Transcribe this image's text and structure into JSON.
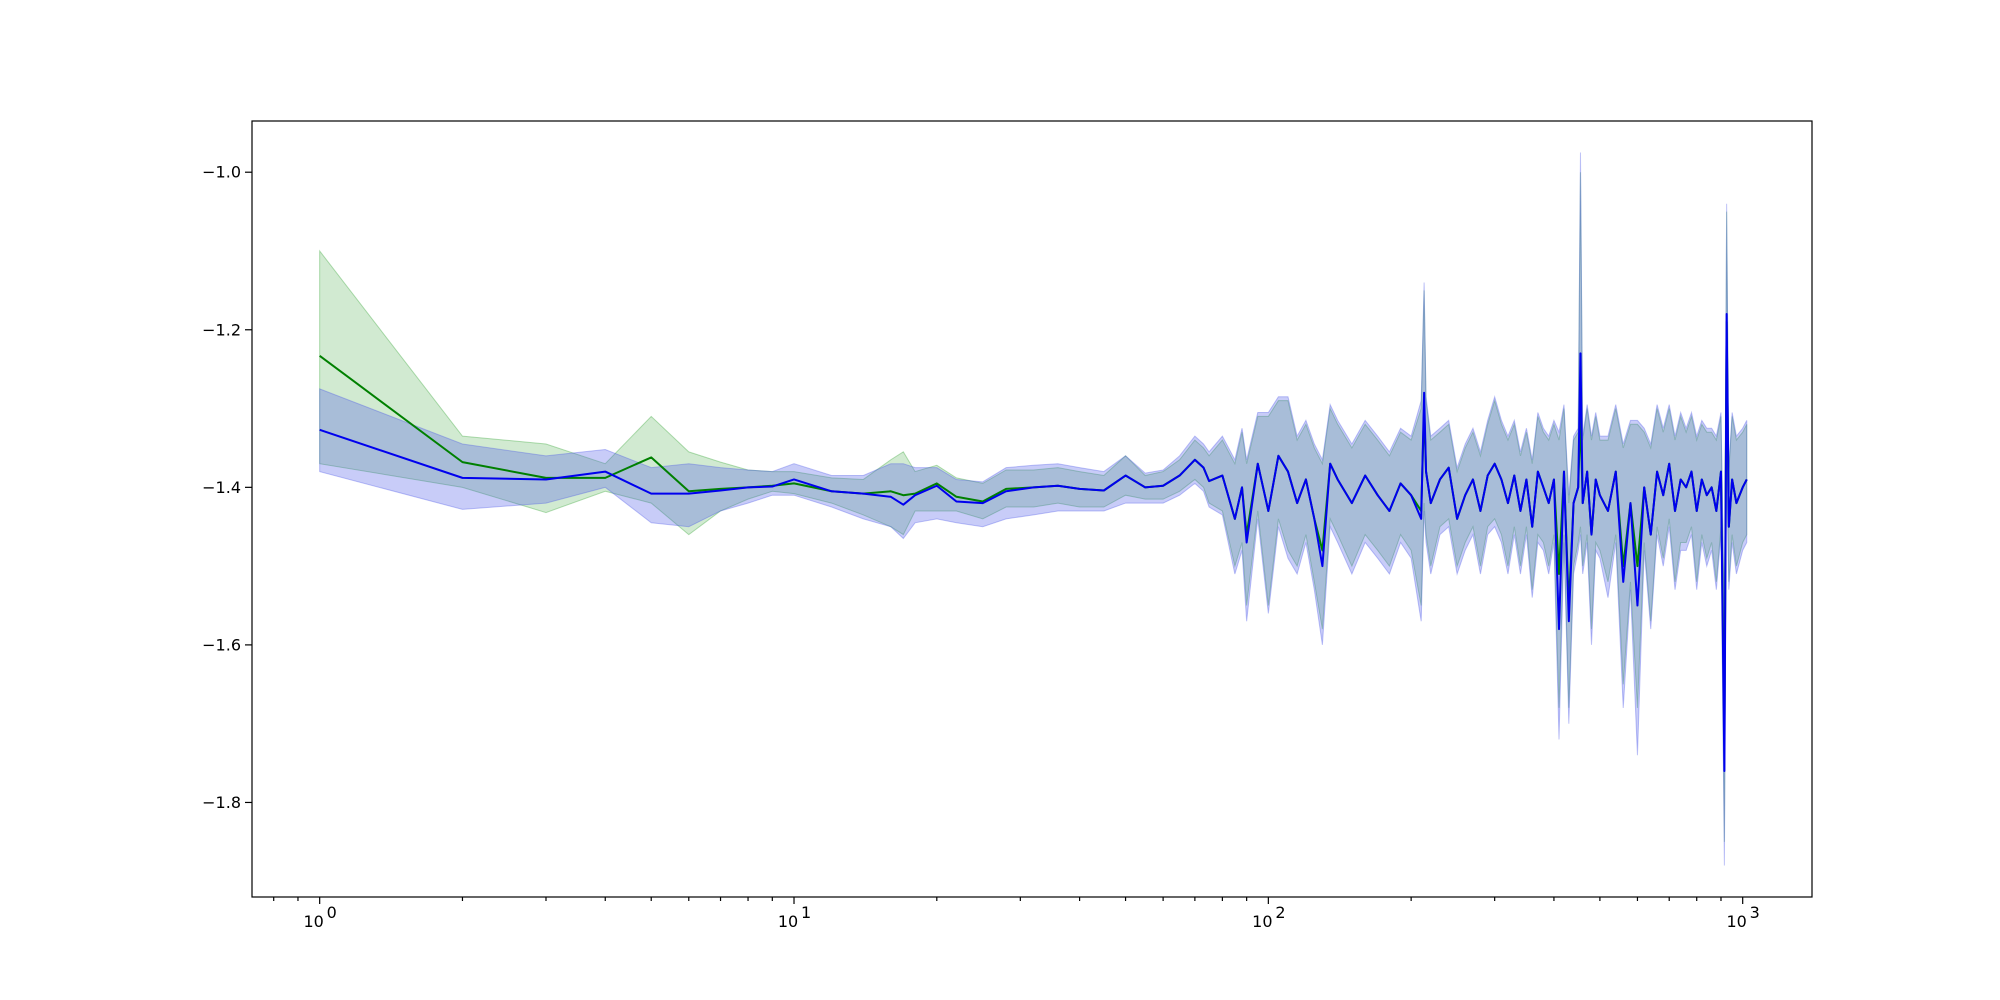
{
  "chart_data": {
    "type": "line",
    "title": "",
    "xlabel": "",
    "ylabel": "",
    "xscale": "log",
    "xlim": [
      0.72,
      1400
    ],
    "ylim": [
      -1.92,
      -0.935
    ],
    "grid": false,
    "legend": "none",
    "x_ticks": [
      {
        "value": 1,
        "base": "10",
        "exp": "0"
      },
      {
        "value": 10,
        "base": "10",
        "exp": "1"
      },
      {
        "value": 100,
        "base": "10",
        "exp": "2"
      },
      {
        "value": 1000,
        "base": "10",
        "exp": "3"
      }
    ],
    "y_ticks": [
      {
        "value": -1.0,
        "label": "−1.0"
      },
      {
        "value": -1.2,
        "label": "−1.2"
      },
      {
        "value": -1.4,
        "label": "−1.4"
      },
      {
        "value": -1.6,
        "label": "−1.6"
      },
      {
        "value": -1.8,
        "label": "−1.8"
      }
    ],
    "series": [
      {
        "color": "#008000",
        "band_color": "#2ca02c",
        "x": [
          1,
          2,
          3,
          4,
          5,
          6,
          7,
          8,
          9,
          10,
          12,
          14,
          16,
          17,
          18,
          20,
          22,
          25,
          28,
          32,
          36,
          40,
          45,
          50,
          55,
          60,
          65,
          70,
          73,
          75,
          80,
          85,
          88,
          90,
          95,
          100,
          105,
          110,
          115,
          120,
          125,
          130,
          135,
          140,
          150,
          160,
          170,
          180,
          190,
          200,
          210,
          213,
          215,
          220,
          230,
          240,
          250,
          260,
          270,
          280,
          290,
          300,
          310,
          320,
          330,
          340,
          350,
          360,
          370,
          380,
          390,
          400,
          410,
          420,
          430,
          440,
          450,
          455,
          460,
          470,
          480,
          490,
          500,
          520,
          540,
          560,
          580,
          600,
          620,
          640,
          660,
          680,
          700,
          720,
          740,
          760,
          780,
          800,
          820,
          840,
          860,
          880,
          900,
          915,
          925,
          935,
          950,
          970,
          1000,
          1020
        ],
        "y": [
          -1.233,
          -1.368,
          -1.388,
          -1.388,
          -1.362,
          -1.405,
          -1.402,
          -1.4,
          -1.398,
          -1.395,
          -1.405,
          -1.408,
          -1.405,
          -1.41,
          -1.408,
          -1.395,
          -1.412,
          -1.418,
          -1.402,
          -1.4,
          -1.398,
          -1.402,
          -1.404,
          -1.385,
          -1.4,
          -1.398,
          -1.385,
          -1.365,
          -1.375,
          -1.392,
          -1.385,
          -1.44,
          -1.4,
          -1.46,
          -1.37,
          -1.43,
          -1.36,
          -1.38,
          -1.42,
          -1.39,
          -1.44,
          -1.48,
          -1.37,
          -1.39,
          -1.42,
          -1.385,
          -1.41,
          -1.43,
          -1.395,
          -1.41,
          -1.43,
          -1.3,
          -1.38,
          -1.42,
          -1.39,
          -1.375,
          -1.44,
          -1.41,
          -1.39,
          -1.43,
          -1.385,
          -1.37,
          -1.39,
          -1.42,
          -1.385,
          -1.43,
          -1.39,
          -1.45,
          -1.38,
          -1.4,
          -1.42,
          -1.39,
          -1.51,
          -1.38,
          -1.55,
          -1.42,
          -1.4,
          -1.31,
          -1.42,
          -1.38,
          -1.46,
          -1.39,
          -1.41,
          -1.43,
          -1.38,
          -1.5,
          -1.42,
          -1.5,
          -1.4,
          -1.46,
          -1.38,
          -1.41,
          -1.37,
          -1.43,
          -1.39,
          -1.4,
          -1.38,
          -1.43,
          -1.39,
          -1.41,
          -1.4,
          -1.43,
          -1.38,
          -1.72,
          -1.19,
          -1.45,
          -1.39,
          -1.42,
          -1.4,
          -1.39
        ],
        "band_lower": [
          -1.37,
          -1.4,
          -1.432,
          -1.405,
          -1.42,
          -1.46,
          -1.43,
          -1.415,
          -1.405,
          -1.408,
          -1.42,
          -1.435,
          -1.45,
          -1.46,
          -1.43,
          -1.43,
          -1.43,
          -1.44,
          -1.425,
          -1.425,
          -1.42,
          -1.425,
          -1.425,
          -1.41,
          -1.415,
          -1.415,
          -1.405,
          -1.39,
          -1.4,
          -1.42,
          -1.43,
          -1.5,
          -1.47,
          -1.55,
          -1.43,
          -1.55,
          -1.44,
          -1.48,
          -1.5,
          -1.46,
          -1.52,
          -1.58,
          -1.44,
          -1.46,
          -1.5,
          -1.46,
          -1.48,
          -1.5,
          -1.46,
          -1.48,
          -1.55,
          -1.42,
          -1.46,
          -1.5,
          -1.45,
          -1.44,
          -1.5,
          -1.47,
          -1.45,
          -1.5,
          -1.45,
          -1.44,
          -1.46,
          -1.5,
          -1.45,
          -1.5,
          -1.45,
          -1.53,
          -1.46,
          -1.47,
          -1.5,
          -1.46,
          -1.68,
          -1.46,
          -1.68,
          -1.5,
          -1.47,
          -1.45,
          -1.5,
          -1.46,
          -1.58,
          -1.47,
          -1.48,
          -1.52,
          -1.46,
          -1.65,
          -1.52,
          -1.68,
          -1.47,
          -1.57,
          -1.45,
          -1.49,
          -1.44,
          -1.52,
          -1.47,
          -1.47,
          -1.45,
          -1.52,
          -1.46,
          -1.49,
          -1.47,
          -1.52,
          -1.45,
          -1.85,
          -1.35,
          -1.52,
          -1.46,
          -1.5,
          -1.47,
          -1.46
        ],
        "band_upper": [
          -1.1,
          -1.335,
          -1.345,
          -1.37,
          -1.31,
          -1.355,
          -1.368,
          -1.378,
          -1.38,
          -1.38,
          -1.388,
          -1.39,
          -1.365,
          -1.355,
          -1.38,
          -1.372,
          -1.388,
          -1.395,
          -1.378,
          -1.378,
          -1.375,
          -1.38,
          -1.385,
          -1.36,
          -1.385,
          -1.38,
          -1.365,
          -1.34,
          -1.35,
          -1.36,
          -1.34,
          -1.37,
          -1.33,
          -1.37,
          -1.31,
          -1.31,
          -1.29,
          -1.29,
          -1.34,
          -1.32,
          -1.35,
          -1.37,
          -1.3,
          -1.32,
          -1.35,
          -1.32,
          -1.34,
          -1.36,
          -1.33,
          -1.34,
          -1.3,
          -1.15,
          -1.29,
          -1.34,
          -1.33,
          -1.32,
          -1.38,
          -1.35,
          -1.33,
          -1.36,
          -1.32,
          -1.29,
          -1.32,
          -1.34,
          -1.32,
          -1.36,
          -1.33,
          -1.37,
          -1.31,
          -1.33,
          -1.34,
          -1.32,
          -1.34,
          -1.3,
          -1.42,
          -1.34,
          -1.33,
          -1.0,
          -1.34,
          -1.3,
          -1.34,
          -1.31,
          -1.34,
          -1.34,
          -1.3,
          -1.35,
          -1.32,
          -1.32,
          -1.33,
          -1.35,
          -1.3,
          -1.33,
          -1.3,
          -1.34,
          -1.31,
          -1.33,
          -1.31,
          -1.34,
          -1.32,
          -1.33,
          -1.33,
          -1.34,
          -1.31,
          -1.58,
          -1.05,
          -1.38,
          -1.31,
          -1.34,
          -1.33,
          -1.32
        ]
      },
      {
        "color": "#0000ee",
        "band_color": "#4a56e8",
        "x": [
          1,
          2,
          3,
          4,
          5,
          6,
          7,
          8,
          9,
          10,
          12,
          14,
          16,
          17,
          18,
          20,
          22,
          25,
          28,
          32,
          36,
          40,
          45,
          50,
          55,
          60,
          65,
          70,
          73,
          75,
          80,
          85,
          88,
          90,
          95,
          100,
          105,
          110,
          115,
          120,
          125,
          130,
          135,
          140,
          150,
          160,
          170,
          180,
          190,
          200,
          210,
          213,
          215,
          220,
          230,
          240,
          250,
          260,
          270,
          280,
          290,
          300,
          310,
          320,
          330,
          340,
          350,
          360,
          370,
          380,
          390,
          400,
          410,
          420,
          430,
          440,
          450,
          455,
          460,
          470,
          480,
          490,
          500,
          520,
          540,
          560,
          580,
          600,
          620,
          640,
          660,
          680,
          700,
          720,
          740,
          760,
          780,
          800,
          820,
          840,
          860,
          880,
          900,
          915,
          925,
          935,
          950,
          970,
          1000,
          1020
        ],
        "y": [
          -1.327,
          -1.388,
          -1.39,
          -1.38,
          -1.408,
          -1.408,
          -1.404,
          -1.4,
          -1.399,
          -1.39,
          -1.405,
          -1.408,
          -1.412,
          -1.422,
          -1.41,
          -1.398,
          -1.418,
          -1.42,
          -1.405,
          -1.4,
          -1.398,
          -1.402,
          -1.404,
          -1.385,
          -1.4,
          -1.398,
          -1.385,
          -1.365,
          -1.375,
          -1.392,
          -1.385,
          -1.44,
          -1.4,
          -1.47,
          -1.37,
          -1.43,
          -1.36,
          -1.38,
          -1.42,
          -1.39,
          -1.44,
          -1.5,
          -1.37,
          -1.39,
          -1.42,
          -1.385,
          -1.41,
          -1.43,
          -1.395,
          -1.41,
          -1.44,
          -1.28,
          -1.38,
          -1.42,
          -1.39,
          -1.375,
          -1.44,
          -1.41,
          -1.39,
          -1.43,
          -1.385,
          -1.37,
          -1.39,
          -1.42,
          -1.385,
          -1.43,
          -1.39,
          -1.45,
          -1.38,
          -1.4,
          -1.42,
          -1.39,
          -1.58,
          -1.38,
          -1.57,
          -1.42,
          -1.4,
          -1.23,
          -1.42,
          -1.38,
          -1.46,
          -1.39,
          -1.41,
          -1.43,
          -1.38,
          -1.52,
          -1.42,
          -1.55,
          -1.4,
          -1.46,
          -1.38,
          -1.41,
          -1.37,
          -1.43,
          -1.39,
          -1.4,
          -1.38,
          -1.43,
          -1.39,
          -1.41,
          -1.4,
          -1.43,
          -1.38,
          -1.76,
          -1.18,
          -1.45,
          -1.39,
          -1.42,
          -1.4,
          -1.39
        ],
        "band_lower": [
          -1.38,
          -1.428,
          -1.42,
          -1.4,
          -1.445,
          -1.45,
          -1.43,
          -1.42,
          -1.41,
          -1.41,
          -1.425,
          -1.44,
          -1.45,
          -1.465,
          -1.445,
          -1.44,
          -1.445,
          -1.45,
          -1.44,
          -1.435,
          -1.43,
          -1.43,
          -1.43,
          -1.42,
          -1.42,
          -1.42,
          -1.41,
          -1.395,
          -1.405,
          -1.425,
          -1.435,
          -1.51,
          -1.48,
          -1.57,
          -1.44,
          -1.56,
          -1.45,
          -1.49,
          -1.51,
          -1.47,
          -1.53,
          -1.6,
          -1.45,
          -1.47,
          -1.51,
          -1.47,
          -1.49,
          -1.51,
          -1.47,
          -1.49,
          -1.57,
          -1.43,
          -1.47,
          -1.51,
          -1.46,
          -1.45,
          -1.51,
          -1.48,
          -1.46,
          -1.51,
          -1.46,
          -1.45,
          -1.47,
          -1.51,
          -1.46,
          -1.51,
          -1.46,
          -1.54,
          -1.47,
          -1.48,
          -1.51,
          -1.47,
          -1.72,
          -1.47,
          -1.7,
          -1.51,
          -1.48,
          -1.46,
          -1.51,
          -1.47,
          -1.6,
          -1.48,
          -1.49,
          -1.54,
          -1.47,
          -1.68,
          -1.53,
          -1.74,
          -1.48,
          -1.58,
          -1.46,
          -1.5,
          -1.45,
          -1.53,
          -1.48,
          -1.48,
          -1.46,
          -1.53,
          -1.47,
          -1.5,
          -1.48,
          -1.53,
          -1.46,
          -1.88,
          -1.37,
          -1.53,
          -1.47,
          -1.51,
          -1.48,
          -1.47
        ],
        "band_upper": [
          -1.275,
          -1.345,
          -1.36,
          -1.352,
          -1.375,
          -1.37,
          -1.375,
          -1.378,
          -1.38,
          -1.37,
          -1.385,
          -1.385,
          -1.37,
          -1.37,
          -1.375,
          -1.375,
          -1.39,
          -1.393,
          -1.375,
          -1.372,
          -1.37,
          -1.375,
          -1.38,
          -1.36,
          -1.382,
          -1.378,
          -1.36,
          -1.335,
          -1.345,
          -1.355,
          -1.335,
          -1.365,
          -1.325,
          -1.365,
          -1.305,
          -1.305,
          -1.285,
          -1.285,
          -1.335,
          -1.315,
          -1.345,
          -1.365,
          -1.295,
          -1.315,
          -1.345,
          -1.315,
          -1.335,
          -1.355,
          -1.325,
          -1.335,
          -1.29,
          -1.14,
          -1.285,
          -1.335,
          -1.325,
          -1.315,
          -1.375,
          -1.345,
          -1.325,
          -1.355,
          -1.315,
          -1.285,
          -1.315,
          -1.335,
          -1.315,
          -1.355,
          -1.325,
          -1.365,
          -1.305,
          -1.325,
          -1.335,
          -1.315,
          -1.33,
          -1.295,
          -1.41,
          -1.335,
          -1.325,
          -0.975,
          -1.335,
          -1.295,
          -1.335,
          -1.305,
          -1.335,
          -1.335,
          -1.295,
          -1.345,
          -1.315,
          -1.315,
          -1.325,
          -1.345,
          -1.295,
          -1.325,
          -1.295,
          -1.335,
          -1.305,
          -1.325,
          -1.305,
          -1.335,
          -1.315,
          -1.325,
          -1.325,
          -1.335,
          -1.305,
          -1.57,
          -1.04,
          -1.375,
          -1.305,
          -1.335,
          -1.325,
          -1.315
        ]
      }
    ]
  }
}
